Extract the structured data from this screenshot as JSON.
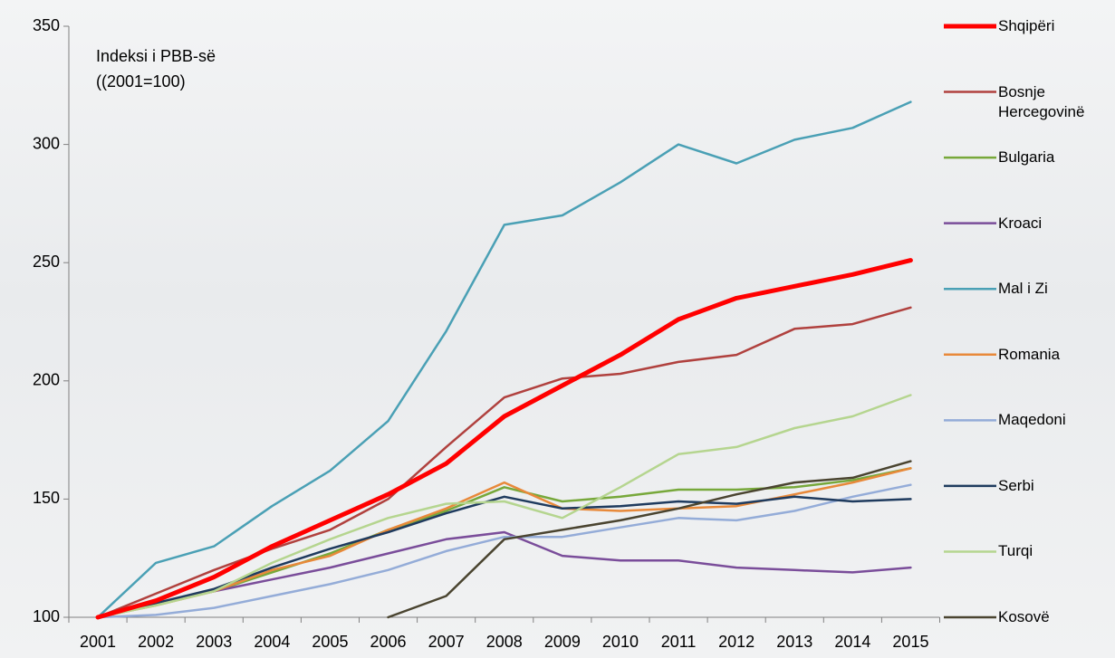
{
  "chart_data": {
    "type": "line",
    "annotation": [
      "Indeksi i PBB-së",
      "((2001=100)"
    ],
    "categories": [
      "2001",
      "2002",
      "2003",
      "2004",
      "2005",
      "2006",
      "2007",
      "2008",
      "2009",
      "2010",
      "2011",
      "2012",
      "2013",
      "2014",
      "2015"
    ],
    "ylim": [
      100,
      350
    ],
    "yticks": [
      100,
      150,
      200,
      250,
      300,
      350
    ],
    "series": [
      {
        "name": "Shqipëri",
        "color": "#ff0000",
        "width": 5,
        "values": [
          100,
          107,
          117,
          130,
          141,
          152,
          165,
          185,
          198,
          211,
          226,
          235,
          240,
          245,
          251
        ]
      },
      {
        "name": "Bosnje Hercegovinë",
        "color": "#b0413e",
        "width": 2.5,
        "values": [
          100,
          110,
          120,
          129,
          137,
          150,
          172,
          193,
          201,
          203,
          208,
          211,
          222,
          224,
          231
        ]
      },
      {
        "name": "Bulgaria",
        "color": "#77a83a",
        "width": 2.5,
        "values": [
          100,
          106,
          111,
          119,
          127,
          137,
          145,
          155,
          149,
          151,
          154,
          154,
          155,
          158,
          163
        ]
      },
      {
        "name": "Kroaci",
        "color": "#7a4d9a",
        "width": 2.5,
        "values": [
          100,
          106,
          111,
          116,
          121,
          127,
          133,
          136,
          126,
          124,
          124,
          121,
          120,
          119,
          121
        ]
      },
      {
        "name": "Mal i Zi",
        "color": "#4aa0b5",
        "width": 2.5,
        "values": [
          100,
          123,
          130,
          147,
          162,
          183,
          221,
          266,
          270,
          284,
          300,
          292,
          302,
          307,
          318
        ]
      },
      {
        "name": "Romania",
        "color": "#e8893a",
        "width": 2.5,
        "values": [
          100,
          105,
          111,
          120,
          126,
          137,
          146,
          157,
          146,
          145,
          146,
          147,
          152,
          157,
          163
        ]
      },
      {
        "name": "Maqedoni",
        "color": "#94acd8",
        "width": 2.5,
        "values": [
          100,
          101,
          104,
          109,
          114,
          120,
          128,
          134,
          134,
          138,
          142,
          141,
          145,
          151,
          156
        ]
      },
      {
        "name": "Serbi",
        "color": "#1f3b5e",
        "width": 2.5,
        "values": [
          100,
          106,
          112,
          121,
          129,
          136,
          144,
          151,
          146,
          147,
          149,
          148,
          151,
          149,
          150
        ]
      },
      {
        "name": "Turqi",
        "color": "#b5d58f",
        "width": 2.5,
        "values": [
          100,
          105,
          111,
          123,
          133,
          142,
          148,
          149,
          142,
          155,
          169,
          172,
          180,
          185,
          194
        ]
      },
      {
        "name": "Kosovë",
        "color": "#4a4430",
        "width": 2.5,
        "values": [
          null,
          null,
          null,
          null,
          null,
          100,
          109,
          133,
          137,
          141,
          146,
          152,
          157,
          159,
          166
        ]
      }
    ]
  }
}
